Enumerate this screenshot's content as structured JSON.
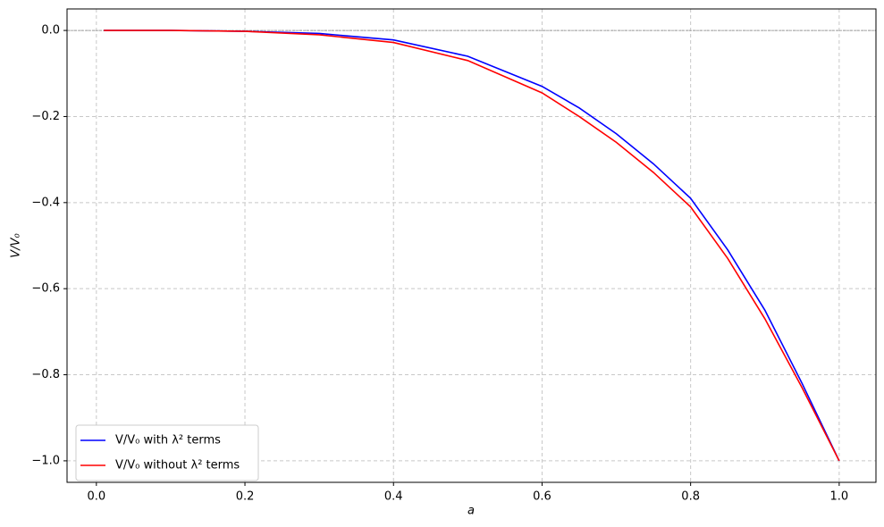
{
  "chart_data": {
    "type": "line",
    "x_label": "a",
    "y_label": "V/V₀",
    "x": [
      0.01,
      0.1,
      0.2,
      0.3,
      0.4,
      0.5,
      0.6,
      0.65,
      0.7,
      0.75,
      0.8,
      0.85,
      0.9,
      0.95,
      1.0
    ],
    "series": [
      {
        "name": "V/V₀ with λ² terms",
        "color": "#0000ff",
        "values": [
          0,
          0,
          -0.002,
          -0.007,
          -0.022,
          -0.06,
          -0.13,
          -0.18,
          -0.24,
          -0.31,
          -0.39,
          -0.51,
          -0.65,
          -0.82,
          -1.0
        ]
      },
      {
        "name": "V/V₀ without λ² terms",
        "color": "#ff0000",
        "values": [
          0,
          0,
          -0.002,
          -0.01,
          -0.028,
          -0.07,
          -0.145,
          -0.2,
          -0.26,
          -0.33,
          -0.41,
          -0.53,
          -0.67,
          -0.83,
          -1.0
        ]
      }
    ],
    "xlim": [
      -0.0395,
      1.0495
    ],
    "ylim": [
      -1.05,
      0.05
    ],
    "xticks": [
      {
        "value": 0,
        "label": "0.0"
      },
      0.2,
      0.4,
      0.6,
      0.8,
      {
        "value": 1,
        "label": "1.0"
      }
    ],
    "yticks": [
      {
        "value": 0,
        "label": "0.0"
      },
      {
        "value": -0.2,
        "label": "−0.2"
      },
      {
        "value": -0.4,
        "label": "−0.4"
      },
      {
        "value": -0.6,
        "label": "−0.6"
      },
      {
        "value": -0.8,
        "label": "−0.8"
      },
      {
        "value": -1,
        "label": "−1.0"
      }
    ],
    "axhline": 0,
    "grid": true,
    "legend": "lower left"
  }
}
